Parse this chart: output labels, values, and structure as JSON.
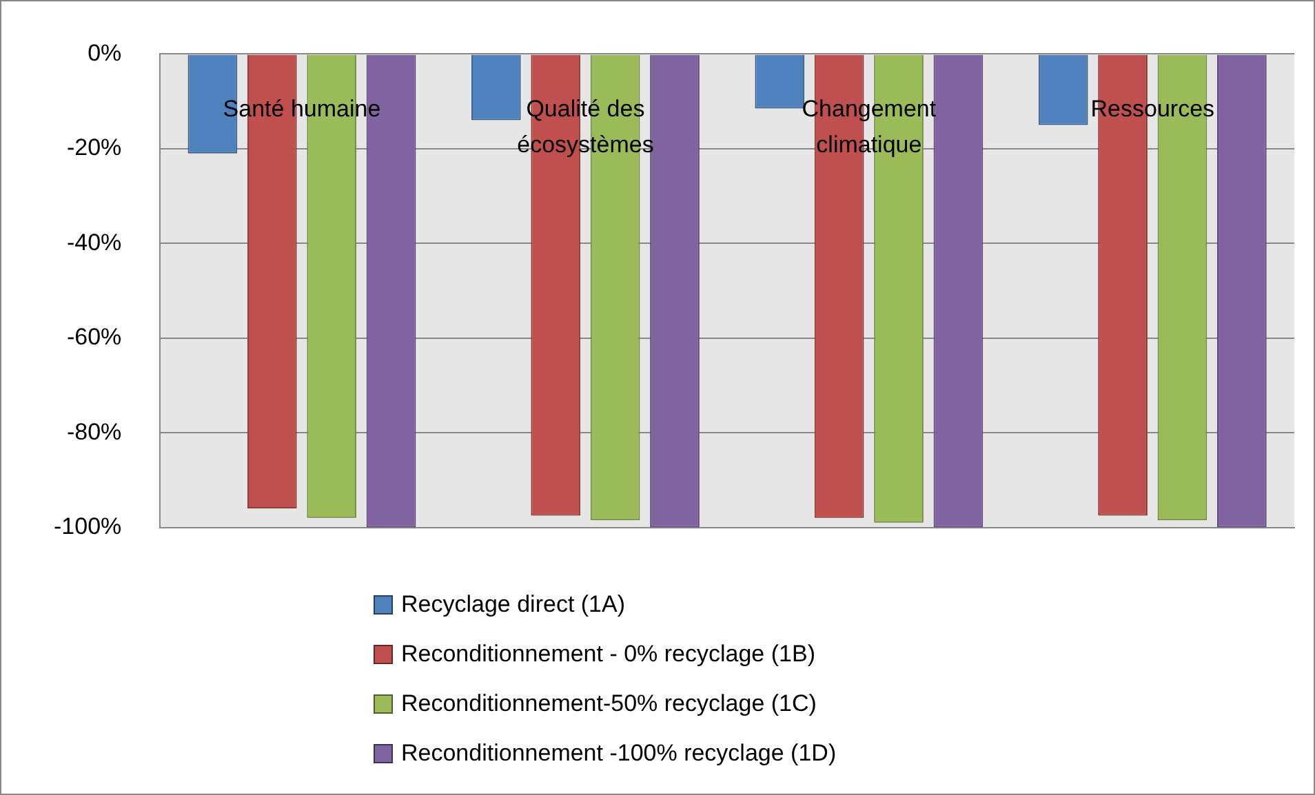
{
  "chart_data": {
    "type": "bar",
    "categories": [
      "Santé humaine",
      "Qualité des écosystèmes",
      "Changement climatique",
      "Ressources"
    ],
    "series": [
      {
        "name": "Recyclage direct  (1A)",
        "color": "#4f81bd",
        "values": [
          -21,
          -14,
          -11.5,
          -15
        ]
      },
      {
        "name": "Reconditionnement - 0% recyclage (1B)",
        "color": "#c0504d",
        "values": [
          -96,
          -97.5,
          -98,
          -97.5
        ]
      },
      {
        "name": "Reconditionnement-50% recyclage (1C)",
        "color": "#9bbb59",
        "values": [
          -98,
          -98.5,
          -99,
          -98.5
        ]
      },
      {
        "name": "Reconditionnement -100% recyclage (1D)",
        "color": "#8064a2",
        "values": [
          -100,
          -100,
          -100,
          -100
        ]
      }
    ],
    "ylim": [
      -100,
      0
    ],
    "yticks": [
      {
        "value": 0,
        "label": "0%"
      },
      {
        "value": -20,
        "label": "-20%"
      },
      {
        "value": -40,
        "label": "-40%"
      },
      {
        "value": -60,
        "label": "-60%"
      },
      {
        "value": -80,
        "label": "-80%"
      },
      {
        "value": -100,
        "label": "-100%"
      }
    ],
    "grid": "y",
    "legend": "bottom"
  }
}
